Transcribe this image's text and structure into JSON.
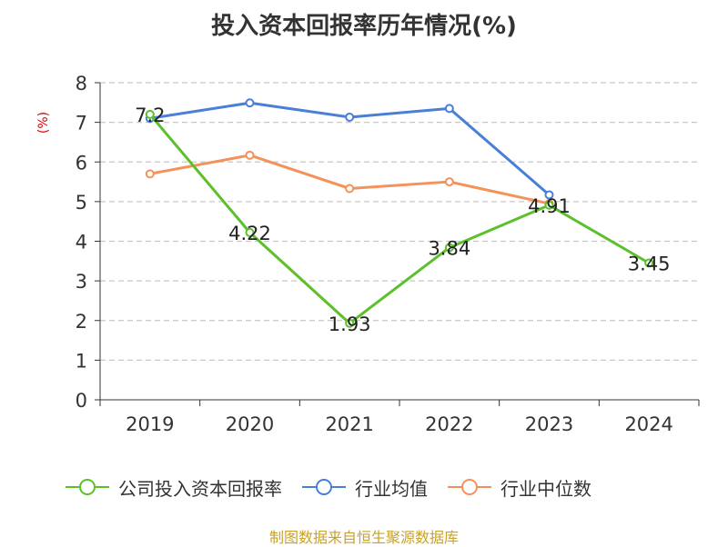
{
  "chart_data": {
    "type": "line",
    "title": "投入资本回报率历年情况(%)",
    "ylabel": "(%)",
    "xlabel": "",
    "ylim": [
      0,
      8
    ],
    "yticks": [
      0,
      1,
      2,
      3,
      4,
      5,
      6,
      7,
      8
    ],
    "categories": [
      "2019",
      "2020",
      "2021",
      "2022",
      "2023",
      "2024"
    ],
    "grid": true,
    "legend_position": "bottom",
    "series": [
      {
        "name": "公司投入资本回报率",
        "color": "#5cc02a",
        "values": [
          7.2,
          4.22,
          1.93,
          3.84,
          4.91,
          3.45
        ],
        "labels": [
          "7.2",
          "4.22",
          "1.93",
          "3.84",
          "4.91",
          "3.45"
        ]
      },
      {
        "name": "行业均值",
        "color": "#4a7fd8",
        "values": [
          7.1,
          7.49,
          7.13,
          7.35,
          5.17,
          null
        ],
        "labels": []
      },
      {
        "name": "行业中位数",
        "color": "#f5915a",
        "values": [
          5.7,
          6.17,
          5.33,
          5.5,
          4.95,
          null
        ],
        "labels": []
      }
    ],
    "source": "制图数据来自恒生聚源数据库"
  }
}
